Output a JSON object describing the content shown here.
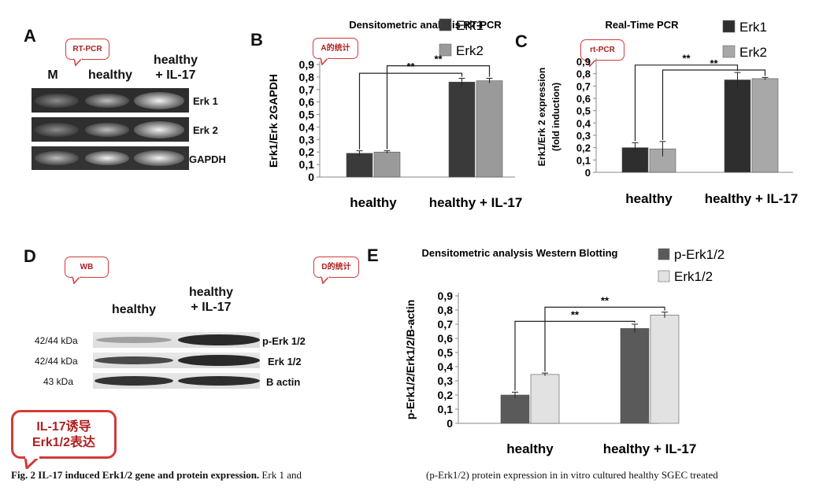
{
  "panels": {
    "A": {
      "letter": "A",
      "callout": "RT-PCR",
      "lanes": [
        "M",
        "healthy",
        "healthy",
        "+ IL-17"
      ],
      "bands": [
        "Erk 1",
        "Erk 2",
        "GAPDH"
      ]
    },
    "B": {
      "letter": "B",
      "callout": "A的统计"
    },
    "C": {
      "letter": "C",
      "callout": "rt-PCR"
    },
    "D": {
      "letter": "D",
      "callout": "WB",
      "callout2": "D的统计",
      "lanes": [
        "healthy",
        "healthy",
        "+ IL-17"
      ],
      "rows": [
        {
          "kda": "42/44 kDa",
          "label": "p-Erk 1/2"
        },
        {
          "kda": "42/44 kDa",
          "label": "Erk 1/2"
        },
        {
          "kda": "43 kDa",
          "label": "B actin"
        }
      ],
      "note_line1": "IL-17诱导",
      "note_line2": "Erk1/2表达"
    },
    "E": {
      "letter": "E"
    }
  },
  "caption": {
    "bold": "Fig. 2  IL-17 induced Erk1/2 gene and protein expression.",
    "rest": " Erk 1 and",
    "right": "(p-Erk1/2) protein expression in in vitro cultured healthy SGEC treated"
  },
  "chart_data": [
    {
      "id": "B",
      "type": "bar",
      "title": "Densitometric analysis RT-PCR",
      "ylabel": "Erk1/Erk 2GAPDH",
      "xlabel": "",
      "categories": [
        "healthy",
        "healthy + IL-17"
      ],
      "series": [
        {
          "name": "Erk1",
          "values": [
            0.19,
            0.76
          ],
          "errors": [
            0.02,
            0.03
          ],
          "color": "#3a3a3a"
        },
        {
          "name": "Erk2",
          "values": [
            0.2,
            0.77
          ],
          "errors": [
            0.01,
            0.02
          ],
          "color": "#9a9a9a"
        }
      ],
      "yticks": [
        "0",
        "0,1",
        "0,2",
        "0,3",
        "0,4",
        "0,5",
        "0,6",
        "0,7",
        "0,8",
        "0,9"
      ],
      "ylim": [
        0,
        0.9
      ],
      "significance": [
        "**",
        "**"
      ],
      "legend": "top-right"
    },
    {
      "id": "C",
      "type": "bar",
      "title": "Real-Time PCR",
      "ylabel": "Erk1/Erk 2 expression",
      "ylabel2": "(fold induction)",
      "xlabel": "",
      "categories": [
        "healthy",
        "healthy + IL-17"
      ],
      "series": [
        {
          "name": "Erk1",
          "values": [
            0.2,
            0.75
          ],
          "errors": [
            0.04,
            0.06
          ],
          "color": "#2e2e2e"
        },
        {
          "name": "Erk2",
          "values": [
            0.19,
            0.76
          ],
          "errors": [
            0.06,
            0.01
          ],
          "color": "#a8a8a8"
        }
      ],
      "yticks": [
        "0",
        "0,1",
        "0,2",
        "0,3",
        "0,4",
        "0,5",
        "0,6",
        "0,7",
        "0,8",
        "0,9"
      ],
      "ylim": [
        0,
        0.9
      ],
      "significance": [
        "**",
        "**"
      ],
      "legend": "top-right"
    },
    {
      "id": "E",
      "type": "bar",
      "title": "Densitometric analysis Western Blotting",
      "ylabel": "p-Erk1/2/Erk1/2/B-actin",
      "xlabel": "",
      "categories": [
        "healthy",
        "healthy + IL-17"
      ],
      "series": [
        {
          "name": "p-Erk1/2",
          "values": [
            0.2,
            0.67
          ],
          "errors": [
            0.02,
            0.03
          ],
          "color": "#5a5a5a"
        },
        {
          "name": "Erk1/2",
          "values": [
            0.345,
            0.765
          ],
          "errors": [
            0.01,
            0.02
          ],
          "color": "#e2e2e2"
        }
      ],
      "yticks": [
        "0",
        "0,1",
        "0,2",
        "0,3",
        "0,4",
        "0,5",
        "0,6",
        "0,7",
        "0,8",
        "0,9"
      ],
      "ylim": [
        0,
        0.9
      ],
      "significance": [
        "**",
        "**"
      ],
      "legend": "top-right"
    }
  ]
}
